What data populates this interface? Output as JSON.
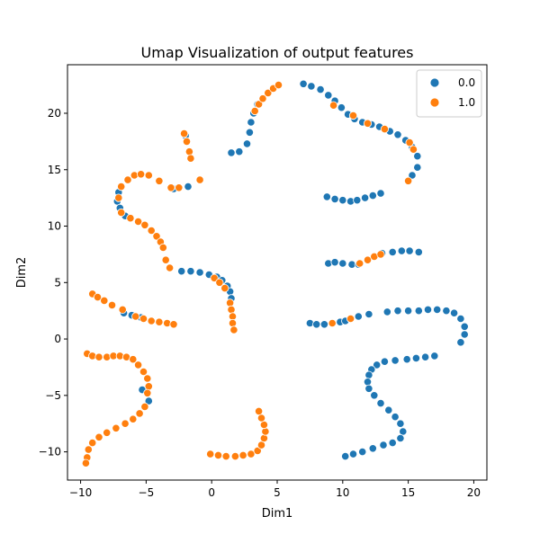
{
  "chart_data": {
    "type": "scatter",
    "title": "Umap Visualization of  output features",
    "xlabel": "Dim1",
    "ylabel": "Dim2",
    "xlim": [
      -11.0,
      21.0
    ],
    "ylim": [
      -12.5,
      24.3
    ],
    "xticks": [
      -10,
      -5,
      0,
      5,
      10,
      15,
      20
    ],
    "yticks": [
      -10,
      -5,
      0,
      5,
      10,
      15,
      20
    ],
    "grid": false,
    "legend": {
      "placement": "top-right"
    },
    "series": [
      {
        "name": "0.0",
        "color": "#1f77b4",
        "points": [
          [
            1.5,
            16.5
          ],
          [
            2.1,
            16.6
          ],
          [
            2.7,
            17.3
          ],
          [
            2.9,
            18.3
          ],
          [
            3.0,
            19.2
          ],
          [
            3.2,
            20.0
          ],
          [
            3.5,
            20.8
          ],
          [
            7.0,
            22.6
          ],
          [
            7.6,
            22.4
          ],
          [
            8.3,
            22.1
          ],
          [
            8.9,
            21.6
          ],
          [
            9.4,
            21.1
          ],
          [
            9.9,
            20.5
          ],
          [
            10.4,
            19.9
          ],
          [
            10.9,
            19.5
          ],
          [
            11.5,
            19.2
          ],
          [
            12.2,
            19.0
          ],
          [
            12.8,
            18.8
          ],
          [
            13.6,
            18.4
          ],
          [
            14.2,
            18.1
          ],
          [
            14.8,
            17.6
          ],
          [
            15.3,
            17.0
          ],
          [
            15.7,
            16.2
          ],
          [
            15.7,
            15.2
          ],
          [
            15.3,
            14.5
          ],
          [
            8.8,
            12.6
          ],
          [
            9.4,
            12.4
          ],
          [
            10.0,
            12.3
          ],
          [
            10.6,
            12.2
          ],
          [
            11.1,
            12.3
          ],
          [
            11.7,
            12.5
          ],
          [
            12.3,
            12.7
          ],
          [
            12.9,
            12.9
          ],
          [
            8.9,
            6.7
          ],
          [
            9.4,
            6.8
          ],
          [
            10.0,
            6.7
          ],
          [
            10.7,
            6.6
          ],
          [
            11.2,
            6.6
          ],
          [
            13.0,
            7.6
          ],
          [
            13.8,
            7.7
          ],
          [
            14.5,
            7.8
          ],
          [
            15.1,
            7.8
          ],
          [
            15.8,
            7.7
          ],
          [
            7.5,
            1.4
          ],
          [
            8.0,
            1.3
          ],
          [
            8.6,
            1.3
          ],
          [
            9.2,
            1.4
          ],
          [
            9.8,
            1.5
          ],
          [
            10.2,
            1.6
          ],
          [
            11.2,
            2.0
          ],
          [
            12.0,
            2.2
          ],
          [
            13.4,
            2.4
          ],
          [
            14.2,
            2.5
          ],
          [
            15.0,
            2.5
          ],
          [
            15.8,
            2.5
          ],
          [
            16.5,
            2.6
          ],
          [
            17.2,
            2.6
          ],
          [
            17.9,
            2.5
          ],
          [
            18.5,
            2.3
          ],
          [
            19.0,
            1.8
          ],
          [
            19.3,
            1.1
          ],
          [
            19.3,
            0.4
          ],
          [
            19.0,
            -0.3
          ],
          [
            17.0,
            -1.5
          ],
          [
            16.3,
            -1.6
          ],
          [
            15.6,
            -1.7
          ],
          [
            14.9,
            -1.8
          ],
          [
            14.0,
            -1.9
          ],
          [
            13.2,
            -2.0
          ],
          [
            12.6,
            -2.3
          ],
          [
            12.2,
            -2.7
          ],
          [
            12.0,
            -3.2
          ],
          [
            11.9,
            -3.8
          ],
          [
            12.0,
            -4.4
          ],
          [
            12.4,
            -5.0
          ],
          [
            12.9,
            -5.7
          ],
          [
            13.5,
            -6.3
          ],
          [
            14.0,
            -6.9
          ],
          [
            14.4,
            -7.5
          ],
          [
            14.6,
            -8.2
          ],
          [
            14.4,
            -8.8
          ],
          [
            13.8,
            -9.2
          ],
          [
            13.1,
            -9.4
          ],
          [
            12.3,
            -9.7
          ],
          [
            11.5,
            -10.0
          ],
          [
            10.8,
            -10.2
          ],
          [
            10.2,
            -10.4
          ],
          [
            -7.1,
            13.0
          ],
          [
            -7.2,
            12.2
          ],
          [
            -7.0,
            11.6
          ],
          [
            -6.6,
            10.9
          ],
          [
            -1.8,
            13.5
          ],
          [
            -2.9,
            13.3
          ],
          [
            -2.0,
            18.0
          ],
          [
            -2.3,
            6.0
          ],
          [
            -1.6,
            6.0
          ],
          [
            -0.9,
            5.9
          ],
          [
            -0.2,
            5.7
          ],
          [
            0.4,
            5.5
          ],
          [
            0.8,
            5.2
          ],
          [
            1.2,
            4.7
          ],
          [
            1.4,
            4.2
          ],
          [
            1.5,
            3.6
          ],
          [
            -6.7,
            2.3
          ],
          [
            -6.1,
            2.1
          ],
          [
            -5.4,
            1.9
          ],
          [
            -4.8,
            -5.5
          ],
          [
            -5.3,
            -4.5
          ]
        ]
      },
      {
        "name": "1.0",
        "color": "#ff7f0e",
        "points": [
          [
            -6.4,
            14.1
          ],
          [
            -5.9,
            14.5
          ],
          [
            -5.4,
            14.6
          ],
          [
            -4.8,
            14.5
          ],
          [
            -4.0,
            14.0
          ],
          [
            -3.1,
            13.4
          ],
          [
            -2.5,
            13.4
          ],
          [
            -0.9,
            14.1
          ],
          [
            -6.9,
            13.5
          ],
          [
            -7.1,
            12.5
          ],
          [
            -6.9,
            11.2
          ],
          [
            -6.2,
            10.7
          ],
          [
            -5.6,
            10.4
          ],
          [
            -5.1,
            10.1
          ],
          [
            -4.6,
            9.6
          ],
          [
            -4.2,
            9.1
          ],
          [
            -3.9,
            8.6
          ],
          [
            -3.7,
            8.1
          ],
          [
            -3.5,
            7.0
          ],
          [
            -3.2,
            6.3
          ],
          [
            -2.1,
            18.2
          ],
          [
            -1.9,
            17.5
          ],
          [
            -1.7,
            16.6
          ],
          [
            -1.6,
            16.0
          ],
          [
            0.2,
            5.4
          ],
          [
            0.6,
            5.0
          ],
          [
            1.0,
            4.5
          ],
          [
            1.4,
            3.2
          ],
          [
            1.5,
            2.6
          ],
          [
            1.6,
            2.0
          ],
          [
            1.6,
            1.4
          ],
          [
            1.7,
            0.8
          ],
          [
            -9.1,
            4.0
          ],
          [
            -8.7,
            3.7
          ],
          [
            -8.2,
            3.4
          ],
          [
            -7.6,
            3.0
          ],
          [
            -6.8,
            2.6
          ],
          [
            -5.8,
            2.0
          ],
          [
            -5.2,
            1.8
          ],
          [
            -4.6,
            1.6
          ],
          [
            -4.0,
            1.5
          ],
          [
            -3.4,
            1.4
          ],
          [
            -2.9,
            1.3
          ],
          [
            -9.5,
            -1.3
          ],
          [
            -9.1,
            -1.5
          ],
          [
            -8.6,
            -1.6
          ],
          [
            -8.0,
            -1.6
          ],
          [
            -7.5,
            -1.5
          ],
          [
            -7.0,
            -1.5
          ],
          [
            -6.5,
            -1.6
          ],
          [
            -6.0,
            -1.8
          ],
          [
            -5.6,
            -2.3
          ],
          [
            -5.2,
            -2.9
          ],
          [
            -4.9,
            -3.5
          ],
          [
            -4.8,
            -4.2
          ],
          [
            -4.9,
            -4.8
          ],
          [
            -5.1,
            -6.0
          ],
          [
            -5.5,
            -6.6
          ],
          [
            -6.0,
            -7.1
          ],
          [
            -6.6,
            -7.5
          ],
          [
            -7.3,
            -7.9
          ],
          [
            -8.0,
            -8.3
          ],
          [
            -8.6,
            -8.7
          ],
          [
            -9.1,
            -9.2
          ],
          [
            -9.4,
            -9.8
          ],
          [
            -9.5,
            -10.5
          ],
          [
            -9.6,
            -11.0
          ],
          [
            -0.1,
            -10.2
          ],
          [
            0.5,
            -10.3
          ],
          [
            1.1,
            -10.4
          ],
          [
            1.8,
            -10.4
          ],
          [
            2.4,
            -10.3
          ],
          [
            3.0,
            -10.2
          ],
          [
            3.5,
            -9.9
          ],
          [
            3.8,
            -9.4
          ],
          [
            4.0,
            -8.8
          ],
          [
            4.1,
            -8.2
          ],
          [
            4.0,
            -7.6
          ],
          [
            3.8,
            -7.0
          ],
          [
            3.6,
            -6.4
          ],
          [
            3.3,
            20.2
          ],
          [
            3.6,
            20.8
          ],
          [
            3.9,
            21.3
          ],
          [
            4.3,
            21.8
          ],
          [
            4.7,
            22.2
          ],
          [
            5.1,
            22.5
          ],
          [
            9.3,
            20.7
          ],
          [
            10.8,
            19.8
          ],
          [
            11.9,
            19.1
          ],
          [
            13.2,
            18.6
          ],
          [
            15.1,
            17.4
          ],
          [
            15.4,
            16.8
          ],
          [
            15.0,
            14.0
          ],
          [
            11.3,
            6.7
          ],
          [
            11.9,
            7.0
          ],
          [
            12.4,
            7.3
          ],
          [
            12.9,
            7.5
          ],
          [
            9.2,
            1.4
          ],
          [
            10.6,
            1.8
          ]
        ]
      }
    ]
  }
}
